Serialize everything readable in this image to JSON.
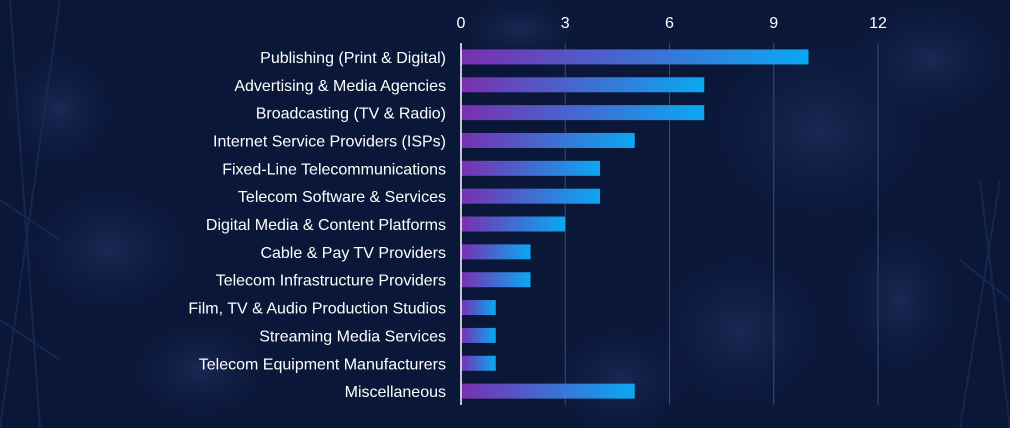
{
  "colors": {
    "background": "#0a1738",
    "bar_gradient_start": "#7a2fb0",
    "bar_gradient_end": "#0aa8f2",
    "gridline": "#3a4a78",
    "text": "#ffffff"
  },
  "chart_data": {
    "type": "bar",
    "orientation": "horizontal",
    "title": "",
    "xlabel": "",
    "ylabel": "",
    "xlim": [
      0,
      12
    ],
    "xticks": [
      0,
      3,
      6,
      9,
      12
    ],
    "x_axis_position": "top",
    "grid": true,
    "legend": "none",
    "categories": [
      "Publishing (Print & Digital)",
      "Advertising & Media Agencies",
      "Broadcasting (TV & Radio)",
      "Internet Service Providers (ISPs)",
      "Fixed-Line Telecommunications",
      "Telecom Software & Services",
      "Digital Media & Content Platforms",
      "Cable & Pay TV Providers",
      "Telecom Infrastructure Providers",
      "Film, TV & Audio Production Studios",
      "Streaming Media Services",
      "Telecom Equipment Manufacturers",
      "Miscellaneous"
    ],
    "values": [
      10,
      7,
      7,
      5,
      4,
      4,
      3,
      2,
      2,
      1,
      1,
      1,
      5
    ]
  }
}
